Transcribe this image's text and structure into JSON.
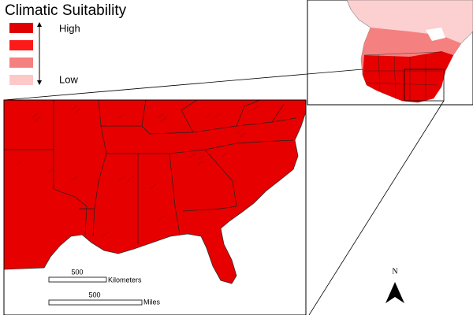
{
  "legend": {
    "title": "Climatic Suitability",
    "high": "High",
    "low": "Low"
  },
  "scale_bars": [
    {
      "value": "500",
      "unit": "Kilometers"
    },
    {
      "value": "500",
      "unit": "Miles"
    }
  ],
  "north_arrow": "N"
}
